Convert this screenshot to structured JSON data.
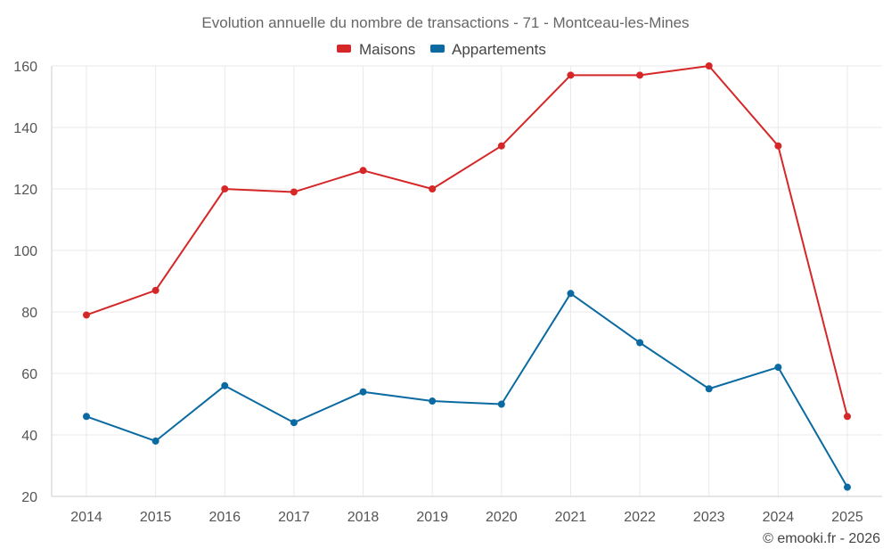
{
  "chart_data": {
    "type": "line",
    "title": "Evolution annuelle du nombre de transactions - 71 - Montceau-les-Mines",
    "xlabel": "",
    "ylabel": "",
    "categories": [
      "2014",
      "2015",
      "2016",
      "2017",
      "2018",
      "2019",
      "2020",
      "2021",
      "2022",
      "2023",
      "2024",
      "2025"
    ],
    "ylim": [
      20,
      160
    ],
    "yticks": [
      20,
      40,
      60,
      80,
      100,
      120,
      140,
      160
    ],
    "grid": true,
    "legend_position": "top-center",
    "series": [
      {
        "name": "Maisons",
        "color": "#d62728",
        "values": [
          79,
          87,
          120,
          119,
          126,
          120,
          134,
          157,
          157,
          160,
          134,
          46
        ]
      },
      {
        "name": "Appartements",
        "color": "#0a6aa1",
        "values": [
          46,
          38,
          56,
          44,
          54,
          51,
          50,
          86,
          70,
          55,
          62,
          23
        ]
      }
    ]
  },
  "credit": "© emooki.fr - 2026"
}
